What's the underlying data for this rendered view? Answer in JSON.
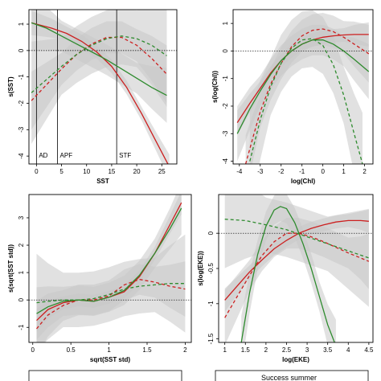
{
  "colors": {
    "summer": "#cc1f1f",
    "winter": "#2e8b2e",
    "band": "#c8c8c8"
  },
  "chart_data": [
    {
      "type": "line",
      "xlabel": "SST",
      "ylabel": "s(SST)",
      "xlim": [
        -1.5,
        28
      ],
      "ylim": [
        -4.3,
        1.55
      ],
      "xticks": [
        0,
        5,
        10,
        15,
        20,
        25
      ],
      "yticks": [
        -4,
        -3,
        -2,
        -1,
        0,
        1
      ],
      "vlines": [
        {
          "x": 0,
          "label": "AD"
        },
        {
          "x": 4.2,
          "label": "APF"
        },
        {
          "x": 16,
          "label": "STF"
        }
      ],
      "series": [
        {
          "color": "summer",
          "style": "solid",
          "band": true,
          "x": [
            -1,
            3,
            6,
            9,
            12,
            15,
            18,
            21,
            24,
            26.5
          ],
          "y": [
            1.05,
            0.85,
            0.65,
            0.35,
            -0.05,
            -0.6,
            -1.4,
            -2.4,
            -3.5,
            -4.4
          ]
        },
        {
          "color": "summer",
          "style": "dashed",
          "band": true,
          "x": [
            -1,
            2,
            5,
            8,
            11,
            14,
            17,
            20,
            23,
            26
          ],
          "y": [
            -1.9,
            -1.3,
            -0.7,
            -0.15,
            0.25,
            0.5,
            0.5,
            0.2,
            -0.3,
            -0.9
          ]
        },
        {
          "color": "winter",
          "style": "solid",
          "band": true,
          "x": [
            -1,
            2,
            5,
            8,
            11,
            14,
            17,
            20,
            23,
            26
          ],
          "y": [
            1.05,
            0.85,
            0.55,
            0.25,
            -0.05,
            -0.35,
            -0.7,
            -1.05,
            -1.4,
            -1.7
          ]
        },
        {
          "color": "winter",
          "style": "dashed",
          "band": true,
          "x": [
            -1,
            2,
            5,
            8,
            11,
            14,
            17,
            20,
            23,
            26
          ],
          "y": [
            -1.6,
            -1.1,
            -0.6,
            -0.15,
            0.2,
            0.45,
            0.55,
            0.45,
            0.2,
            -0.2
          ]
        }
      ]
    },
    {
      "type": "line",
      "xlabel": "log(Chl)",
      "ylabel": "s(log(Chl))",
      "xlim": [
        -4.3,
        2.4
      ],
      "ylim": [
        -4.1,
        1.5
      ],
      "xticks": [
        -4,
        -3,
        -2,
        -1,
        0,
        1,
        2
      ],
      "yticks": [
        -4,
        -3,
        -2,
        -1,
        0,
        1
      ],
      "vlines": [],
      "series": [
        {
          "color": "summer",
          "style": "solid",
          "band": true,
          "x": [
            -4.1,
            -3.5,
            -3,
            -2.5,
            -2,
            -1.5,
            -1,
            -0.5,
            0,
            0.5,
            1,
            1.5,
            2.2
          ],
          "y": [
            -2.6,
            -1.9,
            -1.35,
            -0.8,
            -0.35,
            0,
            0.25,
            0.4,
            0.5,
            0.55,
            0.58,
            0.6,
            0.6
          ]
        },
        {
          "color": "summer",
          "style": "dashed",
          "band": true,
          "x": [
            -3.7,
            -3.3,
            -3,
            -2.5,
            -2,
            -1.5,
            -1,
            -0.5,
            0,
            0.5,
            1,
            1.5,
            2.2
          ],
          "y": [
            -4.1,
            -3.0,
            -2.2,
            -1.2,
            -0.45,
            0.15,
            0.55,
            0.75,
            0.8,
            0.7,
            0.5,
            0.25,
            -0.1
          ]
        },
        {
          "color": "winter",
          "style": "solid",
          "band": true,
          "x": [
            -4.1,
            -3.5,
            -3,
            -2.5,
            -2,
            -1.5,
            -1,
            -0.5,
            0,
            0.5,
            1,
            1.5,
            2.2
          ],
          "y": [
            -3.0,
            -2.1,
            -1.45,
            -0.85,
            -0.35,
            0,
            0.25,
            0.4,
            0.4,
            0.25,
            0,
            -0.3,
            -0.75
          ]
        },
        {
          "color": "winter",
          "style": "dashed",
          "band": true,
          "x": [
            -3.5,
            -3,
            -2.5,
            -2,
            -1.5,
            -1,
            -0.5,
            0,
            0.5,
            1,
            1.5,
            1.9
          ],
          "y": [
            -4.0,
            -2.5,
            -1.3,
            -0.45,
            0.1,
            0.4,
            0.45,
            0.2,
            -0.5,
            -1.6,
            -3.0,
            -4.1
          ]
        }
      ]
    },
    {
      "type": "line",
      "xlabel": "sqrt(SST std)",
      "ylabel": "s(sqrt(SST std))",
      "xlim": [
        -0.05,
        2.08
      ],
      "ylim": [
        -1.55,
        3.85
      ],
      "xticks": [
        0.0,
        0.5,
        1.0,
        1.5,
        2.0
      ],
      "yticks": [
        -1,
        0,
        1,
        2,
        3
      ],
      "vlines": [],
      "series": [
        {
          "color": "summer",
          "style": "solid",
          "band": true,
          "x": [
            0.05,
            0.2,
            0.4,
            0.6,
            0.8,
            1.0,
            1.2,
            1.4,
            1.6,
            1.8,
            1.95
          ],
          "y": [
            -0.75,
            -0.35,
            -0.1,
            0.0,
            -0.05,
            0.1,
            0.3,
            0.85,
            1.7,
            2.75,
            3.55
          ]
        },
        {
          "color": "summer",
          "style": "dashed",
          "band": true,
          "x": [
            0.05,
            0.2,
            0.4,
            0.6,
            0.8,
            1.0,
            1.2,
            1.4,
            1.6,
            1.8,
            2.0
          ],
          "y": [
            -1.05,
            -0.55,
            -0.2,
            0.0,
            0.0,
            0.15,
            0.55,
            0.75,
            0.65,
            0.5,
            0.4
          ]
        },
        {
          "color": "winter",
          "style": "solid",
          "band": true,
          "x": [
            0.05,
            0.2,
            0.4,
            0.6,
            0.8,
            1.0,
            1.2,
            1.4,
            1.6,
            1.8,
            1.95
          ],
          "y": [
            -0.5,
            -0.25,
            -0.05,
            0.0,
            -0.05,
            0.1,
            0.35,
            0.9,
            1.7,
            2.6,
            3.35
          ]
        },
        {
          "color": "winter",
          "style": "dashed",
          "band": true,
          "x": [
            0.05,
            0.2,
            0.4,
            0.6,
            0.8,
            1.0,
            1.2,
            1.4,
            1.6,
            1.8,
            2.0
          ],
          "y": [
            -0.1,
            -0.05,
            0.0,
            0.0,
            0.05,
            0.2,
            0.4,
            0.5,
            0.55,
            0.6,
            0.6
          ]
        }
      ]
    },
    {
      "type": "line",
      "xlabel": "log(EKE)",
      "ylabel": "s(log(EKE))",
      "xlim": [
        0.85,
        4.6
      ],
      "ylim": [
        -1.55,
        0.55
      ],
      "xticks": [
        1.0,
        1.5,
        2.0,
        2.5,
        3.0,
        3.5,
        4.0,
        4.5
      ],
      "yticks": [
        -1.5,
        -1.0,
        -0.5,
        0.0
      ],
      "vlines": [],
      "series": [
        {
          "color": "summer",
          "style": "solid",
          "band": true,
          "x": [
            1.0,
            1.3,
            1.6,
            1.9,
            2.2,
            2.5,
            2.8,
            3.1,
            3.4,
            3.7,
            4.0,
            4.3,
            4.5
          ],
          "y": [
            -0.95,
            -0.75,
            -0.55,
            -0.38,
            -0.22,
            -0.1,
            0.0,
            0.07,
            0.12,
            0.16,
            0.18,
            0.18,
            0.17
          ]
        },
        {
          "color": "summer",
          "style": "dashed",
          "band": true,
          "x": [
            1.0,
            1.3,
            1.6,
            1.9,
            2.2,
            2.5,
            2.8,
            3.1,
            3.4,
            3.7,
            4.0,
            4.3,
            4.5
          ],
          "y": [
            -1.2,
            -0.9,
            -0.6,
            -0.32,
            -0.12,
            0.0,
            0.0,
            -0.05,
            -0.12,
            -0.2,
            -0.28,
            -0.35,
            -0.4
          ]
        },
        {
          "color": "winter",
          "style": "solid",
          "band": true,
          "x": [
            1.4,
            1.6,
            1.8,
            2.0,
            2.2,
            2.35,
            2.5,
            2.7,
            2.9,
            3.1,
            3.3,
            3.5,
            3.7
          ],
          "y": [
            -1.55,
            -0.85,
            -0.3,
            0.1,
            0.33,
            0.38,
            0.35,
            0.15,
            -0.15,
            -0.5,
            -0.9,
            -1.3,
            -1.6
          ]
        },
        {
          "color": "winter",
          "style": "dashed",
          "band": true,
          "x": [
            1.0,
            1.5,
            2.0,
            2.5,
            3.0,
            3.5,
            4.0,
            4.5
          ],
          "y": [
            0.2,
            0.18,
            0.12,
            0.05,
            -0.05,
            -0.15,
            -0.25,
            -0.35
          ]
        }
      ]
    }
  ],
  "legend": {
    "right_label": "Success summer"
  }
}
